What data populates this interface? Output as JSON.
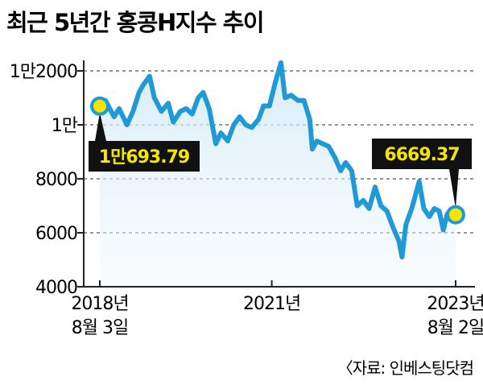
{
  "chart_data": {
    "type": "line",
    "title": "최근 5년간 홍콩H지수 추이",
    "source": "〈자료: 인베스팅닷컴",
    "ylim": [
      4000,
      13000
    ],
    "yticks": [
      {
        "value": 12000,
        "label": "1만2000"
      },
      {
        "value": 10000,
        "label": "1만"
      },
      {
        "value": 8000,
        "label": "8000"
      },
      {
        "value": 6000,
        "label": "6000"
      },
      {
        "value": 4000,
        "label": "4000"
      }
    ],
    "xlim": [
      "2018-08-03",
      "2023-08-02"
    ],
    "xticks": [
      {
        "date": "2018-08-03",
        "line1": "2018년",
        "line2": "8월 3일"
      },
      {
        "date": "2021-01-01",
        "line1": "2021년",
        "line2": ""
      },
      {
        "date": "2023-08-02",
        "line1": "2023년",
        "line2": "8월 2일"
      }
    ],
    "grid": {
      "horizontal": true,
      "style": "dashed"
    },
    "series": [
      {
        "color": "#1f9ad6",
        "points": [
          [
            "2018-08-03",
            10694
          ],
          [
            "2018-09-01",
            10900
          ],
          [
            "2018-10-15",
            10300
          ],
          [
            "2018-11-10",
            10600
          ],
          [
            "2018-12-20",
            10000
          ],
          [
            "2019-01-20",
            10500
          ],
          [
            "2019-02-20",
            11200
          ],
          [
            "2019-03-15",
            11500
          ],
          [
            "2019-04-15",
            11800
          ],
          [
            "2019-05-10",
            11000
          ],
          [
            "2019-06-15",
            10500
          ],
          [
            "2019-07-20",
            10800
          ],
          [
            "2019-08-15",
            10100
          ],
          [
            "2019-09-20",
            10500
          ],
          [
            "2019-10-20",
            10600
          ],
          [
            "2019-11-20",
            10400
          ],
          [
            "2019-12-20",
            11000
          ],
          [
            "2020-01-15",
            11200
          ],
          [
            "2020-02-15",
            10600
          ],
          [
            "2020-03-20",
            9300
          ],
          [
            "2020-04-15",
            9700
          ],
          [
            "2020-05-20",
            9400
          ],
          [
            "2020-06-20",
            10000
          ],
          [
            "2020-07-20",
            10300
          ],
          [
            "2020-08-20",
            10000
          ],
          [
            "2020-09-20",
            9900
          ],
          [
            "2020-10-25",
            10200
          ],
          [
            "2020-11-20",
            10700
          ],
          [
            "2020-12-20",
            10700
          ],
          [
            "2021-01-20",
            11600
          ],
          [
            "2021-02-17",
            12300
          ],
          [
            "2021-03-10",
            11000
          ],
          [
            "2021-04-10",
            11100
          ],
          [
            "2021-05-15",
            10900
          ],
          [
            "2021-06-15",
            10900
          ],
          [
            "2021-07-15",
            10200
          ],
          [
            "2021-07-28",
            9100
          ],
          [
            "2021-08-20",
            9400
          ],
          [
            "2021-09-20",
            9300
          ],
          [
            "2021-10-20",
            9200
          ],
          [
            "2021-11-20",
            8800
          ],
          [
            "2021-12-20",
            8300
          ],
          [
            "2022-01-15",
            8600
          ],
          [
            "2022-02-15",
            8300
          ],
          [
            "2022-03-15",
            7000
          ],
          [
            "2022-04-15",
            7200
          ],
          [
            "2022-05-15",
            6900
          ],
          [
            "2022-06-15",
            7700
          ],
          [
            "2022-07-15",
            7000
          ],
          [
            "2022-08-15",
            6800
          ],
          [
            "2022-09-15",
            6200
          ],
          [
            "2022-10-15",
            5700
          ],
          [
            "2022-10-31",
            5100
          ],
          [
            "2022-11-20",
            6300
          ],
          [
            "2022-12-20",
            6900
          ],
          [
            "2023-01-27",
            7900
          ],
          [
            "2023-02-20",
            6900
          ],
          [
            "2023-03-20",
            6600
          ],
          [
            "2023-04-15",
            6900
          ],
          [
            "2023-05-10",
            6800
          ],
          [
            "2023-05-31",
            6100
          ],
          [
            "2023-06-20",
            6700
          ],
          [
            "2023-07-15",
            6500
          ],
          [
            "2023-08-02",
            6669
          ]
        ]
      }
    ],
    "annotations": [
      {
        "date": "2018-08-03",
        "value": 10693.79,
        "label": "1만693.79"
      },
      {
        "date": "2023-08-02",
        "value": 6669.37,
        "label": "6669.37"
      }
    ]
  }
}
